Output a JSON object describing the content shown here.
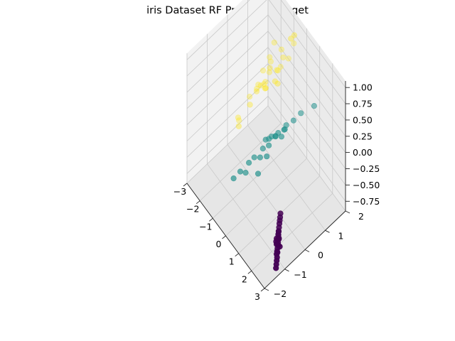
{
  "chart_data": {
    "type": "scatter",
    "projection": "3d",
    "title": "iris Dataset RF Projected Target",
    "xlabel": "",
    "ylabel": "",
    "zlabel": "",
    "grid": true,
    "xlim": [
      -3,
      3
    ],
    "ylim": [
      -2,
      2
    ],
    "zlim": [
      -0.9,
      1.1
    ],
    "x_ticks": [
      "−3",
      "−2",
      "−1",
      "0",
      "1",
      "2",
      "3"
    ],
    "y_ticks": [
      "−2",
      "−1",
      "0",
      "1",
      "2"
    ],
    "z_ticks": [
      "−0.75",
      "−0.50",
      "−0.25",
      "0.00",
      "0.25",
      "0.50",
      "0.75",
      "1.00"
    ],
    "colors": [
      "#440154",
      "#21918c",
      "#fde725"
    ],
    "series": [
      {
        "class_index": 0,
        "color": "#440154",
        "points": [
          [
            2.55,
            -1.05,
            -0.55
          ],
          [
            2.65,
            -1.1,
            -0.6
          ],
          [
            2.5,
            -1.0,
            -0.5
          ],
          [
            2.75,
            -1.2,
            -0.65
          ],
          [
            2.45,
            -0.95,
            -0.48
          ],
          [
            2.6,
            -1.15,
            -0.58
          ],
          [
            2.7,
            -1.05,
            -0.62
          ],
          [
            2.58,
            -1.02,
            -0.53
          ],
          [
            2.52,
            -1.12,
            -0.57
          ],
          [
            2.68,
            -1.18,
            -0.66
          ],
          [
            2.4,
            -0.9,
            -0.45
          ],
          [
            2.62,
            -1.08,
            -0.61
          ],
          [
            2.48,
            -0.98,
            -0.52
          ],
          [
            2.72,
            -1.22,
            -0.68
          ],
          [
            2.55,
            -1.0,
            -0.56
          ],
          [
            2.35,
            -0.85,
            -0.42
          ],
          [
            2.8,
            -1.25,
            -0.7
          ],
          [
            2.3,
            -0.8,
            -0.4
          ],
          [
            2.66,
            -1.14,
            -0.63
          ],
          [
            2.44,
            -0.94,
            -0.49
          ],
          [
            2.85,
            -1.3,
            -0.72
          ],
          [
            2.25,
            -0.75,
            -0.38
          ],
          [
            2.9,
            -1.35,
            -0.75
          ],
          [
            2.57,
            -1.06,
            -0.59
          ],
          [
            2.2,
            -0.7,
            -0.35
          ],
          [
            2.95,
            -1.4,
            -0.78
          ],
          [
            2.5,
            -1.08,
            -0.54
          ]
        ]
      },
      {
        "class_index": 1,
        "color": "#21918c",
        "points": [
          [
            0.1,
            0.2,
            0.0
          ],
          [
            0.3,
            0.4,
            0.05
          ],
          [
            -0.2,
            0.1,
            -0.1
          ],
          [
            0.5,
            0.6,
            0.1
          ],
          [
            0.0,
            -0.3,
            -0.2
          ],
          [
            0.2,
            0.0,
            -0.05
          ],
          [
            -0.4,
            -0.6,
            -0.3
          ],
          [
            0.7,
            0.9,
            0.2
          ],
          [
            0.4,
            0.2,
            0.08
          ],
          [
            -0.1,
            -0.1,
            -0.15
          ],
          [
            0.6,
            0.5,
            0.15
          ],
          [
            -0.6,
            -0.9,
            -0.4
          ],
          [
            -0.8,
            -1.1,
            -0.5
          ],
          [
            0.8,
            1.2,
            0.25
          ],
          [
            0.15,
            -0.5,
            -0.35
          ],
          [
            -0.3,
            -0.4,
            -0.25
          ],
          [
            0.45,
            0.7,
            0.12
          ],
          [
            0.25,
            0.3,
            0.02
          ],
          [
            0.05,
            0.1,
            -0.02
          ],
          [
            -0.5,
            -0.7,
            -0.45
          ],
          [
            0.35,
            -0.2,
            -0.12
          ],
          [
            0.55,
            0.4,
            0.06
          ],
          [
            1.2,
            1.6,
            0.35
          ]
        ]
      },
      {
        "class_index": 2,
        "color": "#fde725",
        "points": [
          [
            -1.2,
            1.6,
            0.45
          ],
          [
            -1.6,
            1.2,
            0.3
          ],
          [
            -2.0,
            1.5,
            0.2
          ],
          [
            -2.2,
            1.8,
            0.35
          ],
          [
            -1.8,
            1.3,
            0.15
          ],
          [
            -1.4,
            1.6,
            0.25
          ],
          [
            -2.4,
            1.7,
            0.1
          ],
          [
            -2.0,
            0.8,
            -0.05
          ],
          [
            -1.6,
            1.0,
            0.05
          ],
          [
            -1.2,
            1.2,
            0.2
          ],
          [
            -2.6,
            1.5,
            -0.1
          ],
          [
            -2.2,
            0.6,
            -0.25
          ],
          [
            -2.7,
            0.9,
            -0.35
          ],
          [
            -2.8,
            0.4,
            -0.55
          ],
          [
            -2.6,
            0.3,
            -0.6
          ],
          [
            -0.6,
            1.6,
            0.9
          ],
          [
            -0.5,
            1.7,
            0.95
          ],
          [
            -1.0,
            2.0,
            0.6
          ],
          [
            -1.5,
            0.9,
            0.1
          ],
          [
            -1.9,
            1.1,
            0.0
          ],
          [
            -2.3,
            1.0,
            -0.15
          ],
          [
            -1.3,
            1.4,
            0.28
          ],
          [
            -1.7,
            1.6,
            0.12
          ],
          [
            -2.5,
            1.2,
            -0.2
          ],
          [
            -1.1,
            1.8,
            0.4
          ],
          [
            -2.1,
            1.3,
            -0.08
          ],
          [
            -2.9,
            0.5,
            -0.65
          ],
          [
            -1.0,
            1.2,
            0.22
          ],
          [
            -1.8,
            1.9,
            0.32
          ],
          [
            -2.0,
            1.0,
            -0.02
          ]
        ]
      }
    ]
  }
}
